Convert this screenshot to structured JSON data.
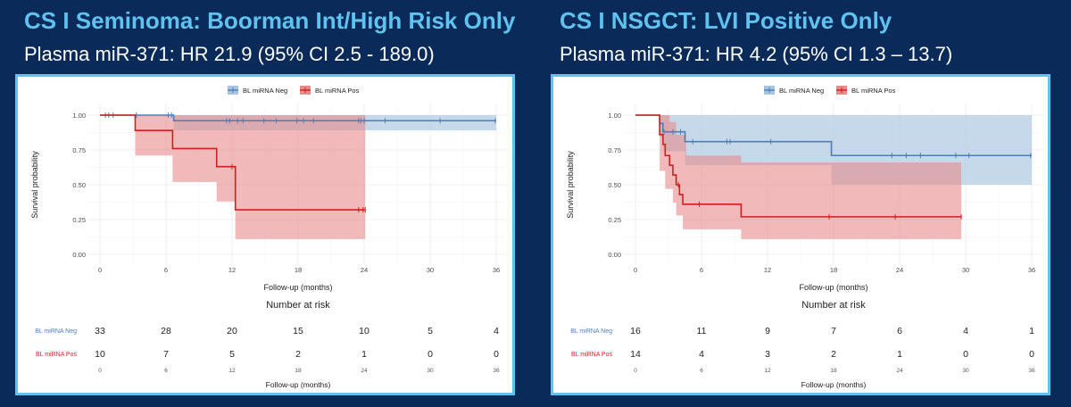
{
  "panels": [
    {
      "title": "CS I Seminoma: Boorman Int/High Risk Only",
      "subtitle": "Plasma miR-371: HR 21.9 (95% CI 2.5 - 189.0)"
    },
    {
      "title": "CS I NSGCT: LVI Positive Only",
      "subtitle": "Plasma miR-371: HR 4.2 (95% CI 1.3 – 13.7)"
    }
  ],
  "colors": {
    "background": "#0a2a5a",
    "title": "#5ec3ee",
    "neg": "#4a7fb8",
    "neg_fill": "#a8c4df",
    "pos": "#d01f1f",
    "pos_fill": "#e88a8a"
  },
  "chart_data": [
    {
      "type": "line",
      "subtype": "kaplan-meier",
      "xlabel": "Follow-up (months)",
      "ylabel": "Survival probability",
      "xticks": [
        "0",
        "6",
        "12",
        "18",
        "24",
        "30",
        "36"
      ],
      "yticks": [
        "0.00",
        "0.25",
        "0.50",
        "0.75",
        "1.00"
      ],
      "xlim": [
        0,
        36
      ],
      "ylim": [
        0,
        1
      ],
      "legend_position": "top",
      "series": [
        {
          "name": "BL miRNA Neg",
          "color": "#4a7fb8",
          "steps": [
            [
              0,
              1.0
            ],
            [
              6.7,
              0.96
            ],
            [
              36,
              0.96
            ]
          ],
          "ci_upper": [
            [
              0,
              1.0
            ],
            [
              36,
              1.0
            ]
          ],
          "ci_lower": [
            [
              0,
              1.0
            ],
            [
              6.7,
              0.89
            ],
            [
              36,
              0.89
            ]
          ],
          "censor_times": [
            0.5,
            0.8,
            1.2,
            3.3,
            6.2,
            6.5,
            11.5,
            11.8,
            12.5,
            13.0,
            14.9,
            16.0,
            17.9,
            18.5,
            19.4,
            23.5,
            23.7,
            24.0,
            25.9,
            30.9,
            35.9
          ]
        },
        {
          "name": "BL miRNA Pos",
          "color": "#d01f1f",
          "steps": [
            [
              0,
              1.0
            ],
            [
              3.2,
              0.89
            ],
            [
              6.6,
              0.76
            ],
            [
              10.6,
              0.63
            ],
            [
              12.3,
              0.32
            ],
            [
              24.1,
              0.32
            ]
          ],
          "ci_upper": [
            [
              0,
              1.0
            ],
            [
              24.1,
              1.0
            ]
          ],
          "ci_lower": [
            [
              0,
              1.0
            ],
            [
              3.2,
              0.71
            ],
            [
              6.6,
              0.52
            ],
            [
              10.6,
              0.38
            ],
            [
              12.3,
              0.11
            ],
            [
              24.1,
              0.11
            ]
          ],
          "censor_times": [
            12.0,
            23.5,
            23.9,
            24.1
          ]
        }
      ],
      "risk_table": {
        "title": "Number at risk",
        "xlabel": "Follow-up (months)",
        "times": [
          "0",
          "6",
          "12",
          "18",
          "24",
          "30",
          "36"
        ],
        "rows": [
          {
            "label": "BL miRNA Neg",
            "counts": [
              "33",
              "28",
              "20",
              "15",
              "10",
              "5",
              "4"
            ]
          },
          {
            "label": "BL miRNA Pos",
            "counts": [
              "10",
              "7",
              "5",
              "2",
              "1",
              "0",
              "0"
            ]
          }
        ]
      }
    },
    {
      "type": "line",
      "subtype": "kaplan-meier",
      "xlabel": "Follow-up (months)",
      "ylabel": "Survival probability",
      "xticks": [
        "0",
        "6",
        "12",
        "18",
        "24",
        "30",
        "36"
      ],
      "yticks": [
        "0.00",
        "0.25",
        "0.50",
        "0.75",
        "1.00"
      ],
      "xlim": [
        0,
        36
      ],
      "ylim": [
        0,
        1
      ],
      "legend_position": "top",
      "series": [
        {
          "name": "BL miRNA Neg",
          "color": "#4a7fb8",
          "steps": [
            [
              0,
              1.0
            ],
            [
              2.2,
              0.94
            ],
            [
              2.5,
              0.88
            ],
            [
              4.5,
              0.81
            ],
            [
              17.8,
              0.71
            ],
            [
              36,
              0.71
            ]
          ],
          "ci_upper": [
            [
              0,
              1.0
            ],
            [
              36,
              1.0
            ]
          ],
          "ci_lower": [
            [
              0,
              1.0
            ],
            [
              2.2,
              0.84
            ],
            [
              2.5,
              0.74
            ],
            [
              4.5,
              0.64
            ],
            [
              17.8,
              0.5
            ],
            [
              36,
              0.5
            ]
          ],
          "censor_times": [
            2.6,
            3.4,
            4.1,
            5.2,
            8.3,
            8.6,
            12.3,
            23.3,
            24.6,
            25.9,
            29.1,
            30.3,
            35.9
          ]
        },
        {
          "name": "BL miRNA Pos",
          "color": "#d01f1f",
          "steps": [
            [
              0,
              1.0
            ],
            [
              2.2,
              0.86
            ],
            [
              2.5,
              0.79
            ],
            [
              2.7,
              0.71
            ],
            [
              3.1,
              0.64
            ],
            [
              3.4,
              0.57
            ],
            [
              3.7,
              0.5
            ],
            [
              4.0,
              0.43
            ],
            [
              4.3,
              0.36
            ],
            [
              9.6,
              0.27
            ],
            [
              29.6,
              0.27
            ]
          ],
          "ci_upper": [
            [
              0,
              1.0
            ],
            [
              3.1,
              0.95
            ],
            [
              3.7,
              0.86
            ],
            [
              4.6,
              0.71
            ],
            [
              9.6,
              0.66
            ],
            [
              29.6,
              0.66
            ]
          ],
          "ci_lower": [
            [
              0,
              1.0
            ],
            [
              2.2,
              0.6
            ],
            [
              2.7,
              0.47
            ],
            [
              3.4,
              0.37
            ],
            [
              3.7,
              0.28
            ],
            [
              4.3,
              0.18
            ],
            [
              9.6,
              0.11
            ],
            [
              29.6,
              0.11
            ]
          ],
          "censor_times": [
            3.9,
            5.8,
            17.6,
            23.6,
            29.6
          ]
        }
      ],
      "risk_table": {
        "title": "Number at risk",
        "xlabel": "Follow-up (months)",
        "times": [
          "0",
          "6",
          "12",
          "18",
          "24",
          "30",
          "36"
        ],
        "rows": [
          {
            "label": "BL miRNA Neg",
            "counts": [
              "16",
              "11",
              "9",
              "7",
              "6",
              "4",
              "1"
            ]
          },
          {
            "label": "BL miRNA Pos",
            "counts": [
              "14",
              "4",
              "3",
              "2",
              "1",
              "0",
              "0"
            ]
          }
        ]
      }
    }
  ]
}
